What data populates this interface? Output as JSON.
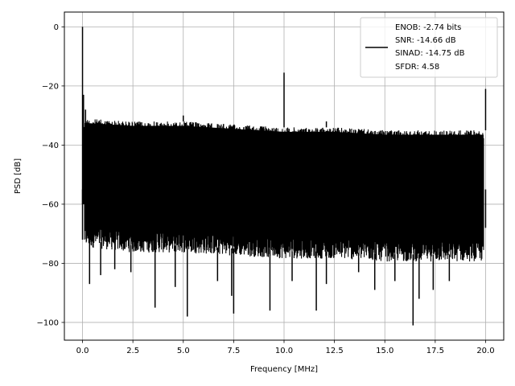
{
  "chart_data": {
    "type": "line",
    "title": "",
    "xlabel": "Frequency [MHz]",
    "ylabel": "PSD [dB]",
    "xlim": [
      -0.9,
      20.9
    ],
    "ylim": [
      -106,
      5
    ],
    "xticks": [
      0.0,
      2.5,
      5.0,
      7.5,
      10.0,
      12.5,
      15.0,
      17.5,
      20.0
    ],
    "xtick_labels": [
      "0.0",
      "2.5",
      "5.0",
      "7.5",
      "10.0",
      "12.5",
      "15.0",
      "17.5",
      "20.0"
    ],
    "yticks": [
      0,
      -20,
      -40,
      -60,
      -80,
      -100
    ],
    "ytick_labels": [
      "0",
      "−20",
      "−40",
      "−60",
      "−80",
      "−100"
    ],
    "grid": true,
    "legend_position": "top-right",
    "series": [
      {
        "name": "ENOB: -2.74 bits\nSNR: -14.66 dB\nSINAD: -14.75 dB\nSFDR: 4.58",
        "color": "#000000",
        "noise_band": {
          "x": [
            0.1,
            2.5,
            5.0,
            7.5,
            10.0,
            12.5,
            15.0,
            17.5,
            19.9
          ],
          "upper": [
            -31,
            -32,
            -32,
            -33,
            -34,
            -34,
            -35,
            -35,
            -35
          ],
          "lower": [
            -72,
            -74,
            -74,
            -75,
            -76,
            -76,
            -77,
            -77,
            -77
          ]
        },
        "dips": [
          [
            0.35,
            -87
          ],
          [
            0.9,
            -84
          ],
          [
            1.6,
            -82
          ],
          [
            2.4,
            -83
          ],
          [
            3.6,
            -95
          ],
          [
            4.6,
            -88
          ],
          [
            5.2,
            -98
          ],
          [
            6.7,
            -86
          ],
          [
            7.4,
            -91
          ],
          [
            7.5,
            -97
          ],
          [
            9.3,
            -96
          ],
          [
            10.4,
            -86
          ],
          [
            11.6,
            -96
          ],
          [
            12.1,
            -87
          ],
          [
            13.7,
            -83
          ],
          [
            14.5,
            -89
          ],
          [
            15.5,
            -86
          ],
          [
            16.4,
            -101
          ],
          [
            16.7,
            -92
          ],
          [
            17.4,
            -89
          ],
          [
            18.2,
            -86
          ]
        ],
        "spikes": [
          [
            0.0,
            0
          ],
          [
            0.05,
            -23
          ],
          [
            0.15,
            -28
          ],
          [
            5.0,
            -30
          ],
          [
            10.0,
            -15.5
          ],
          [
            12.1,
            -32
          ],
          [
            19.95,
            -35
          ],
          [
            20.0,
            -21
          ]
        ],
        "low_end": [
          [
            0.0,
            -55
          ],
          [
            0.0,
            -72
          ],
          [
            20.0,
            -68
          ],
          [
            20.0,
            -55
          ]
        ]
      }
    ],
    "legend_lines": [
      "ENOB: -2.74 bits",
      "SNR: -14.66 dB",
      "SINAD: -14.75 dB",
      "SFDR: 4.58"
    ]
  }
}
